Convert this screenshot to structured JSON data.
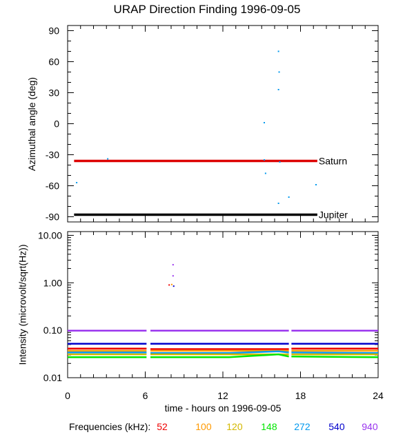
{
  "title": "URAP Direction Finding  1996-09-05",
  "x_axis": {
    "label": "time - hours on 1996-09-05",
    "ticks": [
      0,
      6,
      12,
      18,
      24
    ]
  },
  "legend": {
    "label": "Frequencies (kHz):",
    "items": [
      {
        "label": "52",
        "color": "#ee0000"
      },
      {
        "label": "100",
        "color": "#ff9900"
      },
      {
        "label": "120",
        "color": "#d4b800"
      },
      {
        "label": "148",
        "color": "#00e600"
      },
      {
        "label": "272",
        "color": "#0099ee"
      },
      {
        "label": "540",
        "color": "#0000cc"
      },
      {
        "label": "940",
        "color": "#9933ee"
      }
    ]
  },
  "chart_data": [
    {
      "type": "scatter",
      "ylabel": "Azimuthal angle (deg)",
      "xlim": [
        0,
        24
      ],
      "ylim": [
        -95,
        95
      ],
      "yticks": [
        90,
        60,
        30,
        0,
        -30,
        -60,
        -90
      ],
      "reference_lines": [
        {
          "name": "Saturn",
          "y": -36,
          "x": [
            0.5,
            19.3
          ],
          "color": "#dd0000"
        },
        {
          "name": "Jupiter",
          "y": -88,
          "x": [
            0.5,
            19.3
          ],
          "color": "#000000"
        }
      ],
      "points": [
        {
          "x": 0.7,
          "y": -57,
          "color": "#0099ee"
        },
        {
          "x": 3.1,
          "y": -34,
          "color": "#0099ee"
        },
        {
          "x": 15.2,
          "y": 1,
          "color": "#0099ee"
        },
        {
          "x": 15.2,
          "y": -35,
          "color": "#0099ee"
        },
        {
          "x": 15.3,
          "y": -48,
          "color": "#0099ee"
        },
        {
          "x": 16.3,
          "y": 70,
          "color": "#0099ee"
        },
        {
          "x": 16.35,
          "y": 50,
          "color": "#0099ee"
        },
        {
          "x": 16.3,
          "y": 33,
          "color": "#0099ee"
        },
        {
          "x": 16.4,
          "y": -37,
          "color": "#0099ee"
        },
        {
          "x": 16.3,
          "y": -77,
          "color": "#0099ee"
        },
        {
          "x": 17.1,
          "y": -71,
          "color": "#0099ee"
        },
        {
          "x": 19.2,
          "y": -59,
          "color": "#0099ee"
        }
      ]
    },
    {
      "type": "line",
      "ylabel": "Intensity (microvolt/sqrt(Hz))",
      "yscale": "log",
      "ylim": [
        0.01,
        12
      ],
      "yticks": [
        10.0,
        1.0,
        0.1,
        0.01
      ],
      "ytick_labels": [
        "10.00",
        "1.00",
        "0.10",
        "0.01"
      ],
      "gaps": [
        [
          6.1,
          6.4
        ],
        [
          17.1,
          17.3
        ]
      ],
      "series": [
        {
          "name": "940",
          "color": "#9933ee",
          "values": [
            [
              0,
              0.098
            ],
            [
              6.1,
              0.098
            ],
            [
              6.4,
              0.098
            ],
            [
              17.1,
              0.098
            ],
            [
              17.3,
              0.098
            ],
            [
              24,
              0.098
            ]
          ]
        },
        {
          "name": "540",
          "color": "#0000cc",
          "values": [
            [
              0,
              0.052
            ],
            [
              6.1,
              0.052
            ],
            [
              6.4,
              0.052
            ],
            [
              17.1,
              0.052
            ],
            [
              17.3,
              0.052
            ],
            [
              24,
              0.052
            ]
          ]
        },
        {
          "name": "52",
          "color": "#ee0000",
          "values": [
            [
              0,
              0.041
            ],
            [
              6.1,
              0.041
            ],
            [
              6.4,
              0.04
            ],
            [
              17.1,
              0.04
            ],
            [
              17.3,
              0.041
            ],
            [
              24,
              0.041
            ]
          ]
        },
        {
          "name": "100",
          "color": "#ff9900",
          "values": [
            [
              0,
              0.037
            ],
            [
              6.1,
              0.037
            ],
            [
              6.4,
              0.037
            ],
            [
              17.1,
              0.037
            ],
            [
              17.3,
              0.037
            ],
            [
              24,
              0.037
            ]
          ]
        },
        {
          "name": "272",
          "color": "#0099ee",
          "values": [
            [
              0,
              0.034
            ],
            [
              6.1,
              0.034
            ],
            [
              6.4,
              0.033
            ],
            [
              12.5,
              0.033
            ],
            [
              16.3,
              0.036
            ],
            [
              17.1,
              0.034
            ],
            [
              17.3,
              0.034
            ],
            [
              24,
              0.033
            ]
          ]
        },
        {
          "name": "120",
          "color": "#d4b800",
          "values": [
            [
              0,
              0.031
            ],
            [
              6.1,
              0.031
            ],
            [
              6.4,
              0.031
            ],
            [
              17.1,
              0.031
            ],
            [
              17.3,
              0.031
            ],
            [
              24,
              0.031
            ]
          ]
        },
        {
          "name": "148",
          "color": "#00e600",
          "values": [
            [
              0,
              0.027
            ],
            [
              6.1,
              0.027
            ],
            [
              6.4,
              0.027
            ],
            [
              12.5,
              0.027
            ],
            [
              16.3,
              0.031
            ],
            [
              17.1,
              0.028
            ],
            [
              17.3,
              0.028
            ],
            [
              24,
              0.027
            ]
          ]
        }
      ],
      "points": [
        {
          "x": 7.85,
          "y": 0.9,
          "color": "#ee0000"
        },
        {
          "x": 8.05,
          "y": 0.92,
          "color": "#ff9900"
        },
        {
          "x": 8.15,
          "y": 2.4,
          "color": "#9933ee"
        },
        {
          "x": 8.15,
          "y": 1.4,
          "color": "#9933ee"
        },
        {
          "x": 8.2,
          "y": 0.85,
          "color": "#0000cc"
        }
      ]
    }
  ]
}
